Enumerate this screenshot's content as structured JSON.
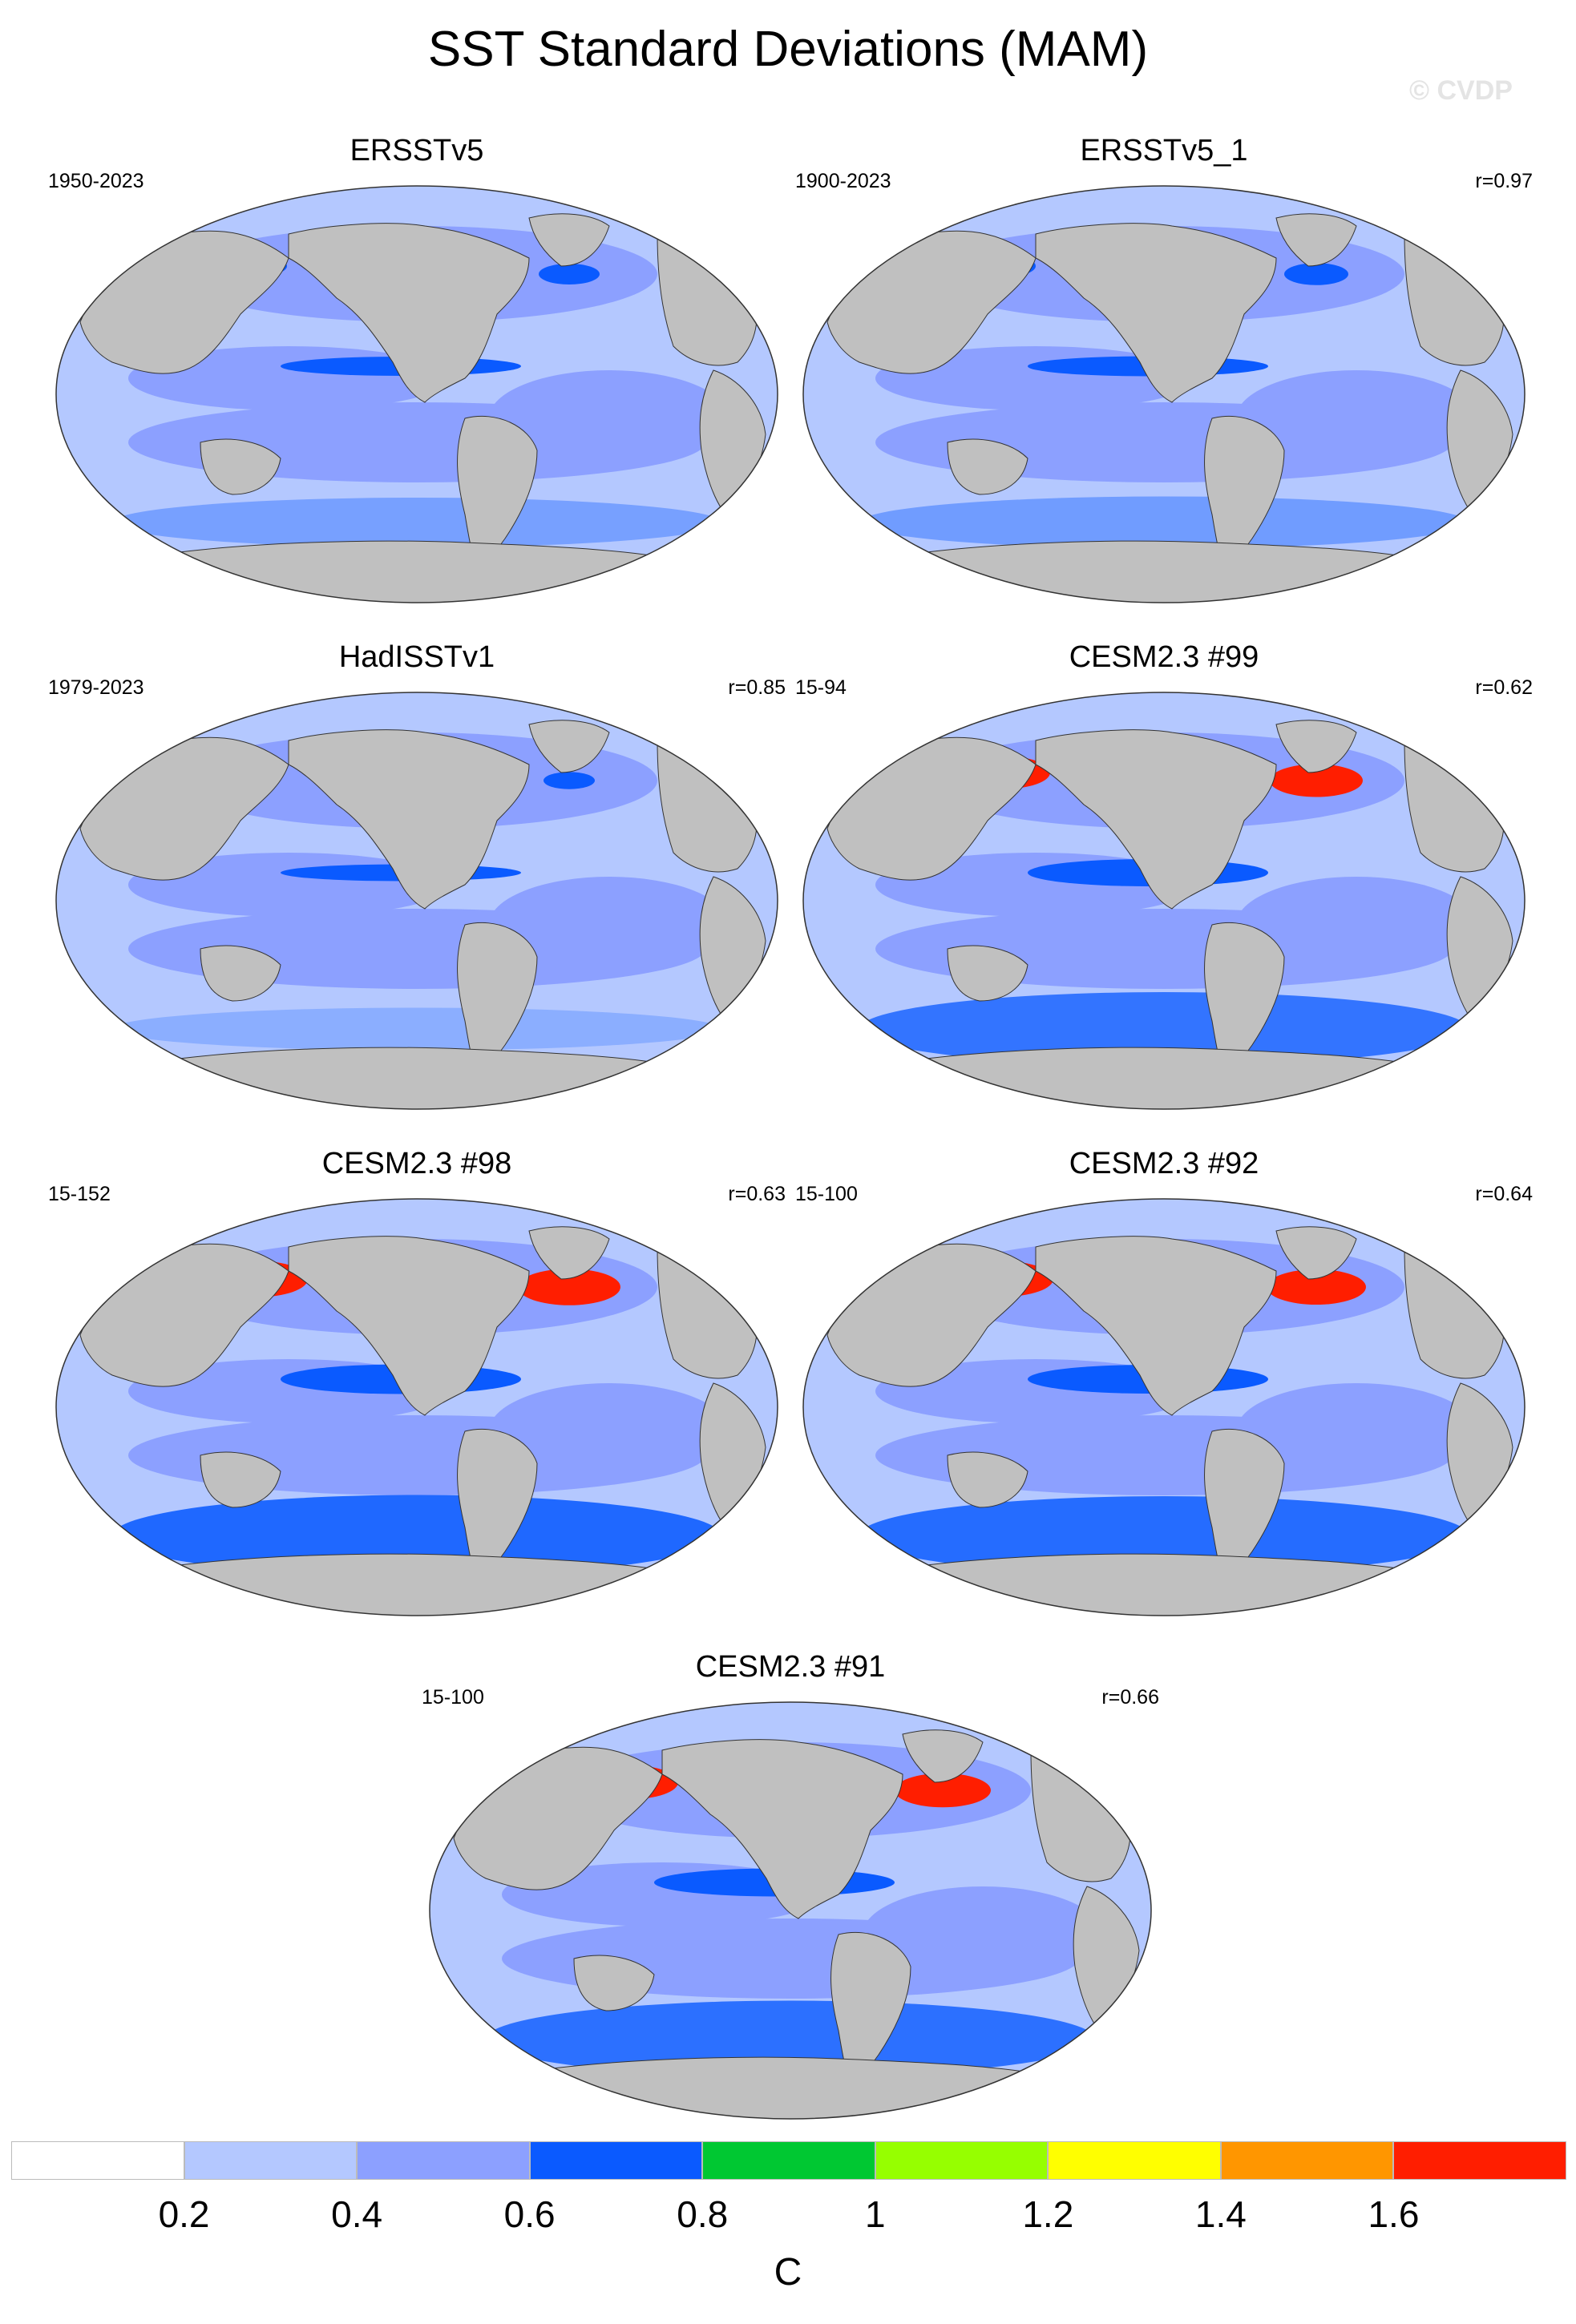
{
  "figure": {
    "title": "SST Standard Deviations (MAM)",
    "watermark": "© CVDP"
  },
  "panels": [
    {
      "name": "ERSSTv5",
      "period": "1950-2023",
      "r": "",
      "intensity": 0.2
    },
    {
      "name": "ERSSTv5_1",
      "period": "1900-2023",
      "r": "r=0.97",
      "intensity": 0.25
    },
    {
      "name": "HadISSTv1",
      "period": "1979-2023",
      "r": "r=0.85",
      "intensity": 0.05
    },
    {
      "name": "CESM2.3 #99",
      "period": "15-94",
      "r": "r=0.62",
      "intensity": 0.7
    },
    {
      "name": "CESM2.3 #98",
      "period": "15-152",
      "r": "r=0.63",
      "intensity": 0.85
    },
    {
      "name": "CESM2.3 #92",
      "period": "15-100",
      "r": "r=0.64",
      "intensity": 0.8
    },
    {
      "name": "CESM2.3 #91",
      "period": "15-100",
      "r": "r=0.66",
      "intensity": 0.75
    }
  ],
  "colorbar": {
    "unit": "C",
    "levels": [
      "0.2",
      "0.4",
      "0.6",
      "0.8",
      "1",
      "1.2",
      "1.4",
      "1.6"
    ],
    "colors": [
      "#ffffff",
      "#b4c8ff",
      "#8ca0ff",
      "#0a5aff",
      "#00c832",
      "#96ff00",
      "#ffff00",
      "#ff9600",
      "#ff1e00"
    ]
  },
  "colors": {
    "land": "#c0c0c0",
    "ocean_low": "#b4c8ff",
    "ocean_mid": "#8ca0ff",
    "ocean_high": "#0a5aff",
    "hot": "#ff1e00"
  }
}
